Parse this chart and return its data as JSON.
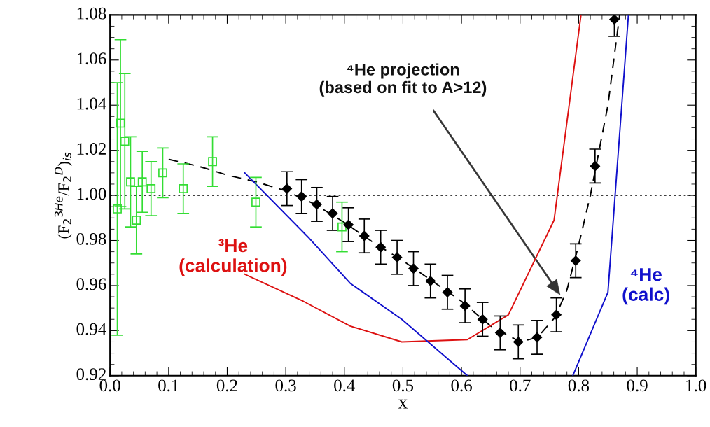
{
  "chart_data": {
    "type": "line",
    "xlabel": "x",
    "ylabel": "(F$_{2}$$^{3He}$/F$_{2}$$^{D}$)$_{is}$",
    "xlim": [
      0.0,
      1.0
    ],
    "ylim": [
      0.92,
      1.08
    ],
    "xticks": [
      {
        "value": 0.0,
        "label": "0.0"
      },
      0.1,
      0.2,
      0.3,
      0.4,
      0.5,
      0.6,
      0.7,
      0.8,
      0.9,
      {
        "value": 1.0,
        "label": "1.0"
      }
    ],
    "yticks": [
      0.92,
      0.94,
      0.96,
      0.98,
      {
        "value": 1.0,
        "label": "1.00"
      },
      1.02,
      1.04,
      1.06,
      1.08
    ],
    "grid": false,
    "legend": false,
    "ref_lines": [
      {
        "axis": "y",
        "value": 1.0,
        "color": "#000000",
        "line_style": "dotted"
      }
    ],
    "series": [
      {
        "color": "#000000",
        "line_style": "dashed",
        "marker": "none",
        "x": [
          0.1,
          0.15,
          0.2,
          0.25,
          0.3,
          0.35,
          0.4,
          0.45,
          0.5,
          0.55,
          0.6,
          0.65,
          0.7,
          0.73,
          0.76,
          0.78,
          0.8,
          0.82,
          0.85,
          0.87
        ],
        "values": [
          1.016,
          1.013,
          1.009,
          1.006,
          1.002,
          0.996,
          0.988,
          0.979,
          0.971,
          0.962,
          0.953,
          0.942,
          0.935,
          0.937,
          0.946,
          0.958,
          0.978,
          1.0,
          1.04,
          1.08
        ]
      },
      {
        "name": "³He\n(calculation)",
        "color": "#dd1111",
        "line_style": "solid",
        "marker": "none",
        "x": [
          0.23,
          0.33,
          0.41,
          0.498,
          0.61,
          0.68,
          0.758,
          0.804
        ],
        "values": [
          0.965,
          0.953,
          0.942,
          0.935,
          0.936,
          0.947,
          0.989,
          1.08
        ]
      },
      {
        "name": "⁴He\n(calc)",
        "color": "#1111cc",
        "line_style": "solid",
        "marker": "none",
        "x": [
          0.23,
          0.34,
          0.41,
          0.498,
          0.61,
          0.7,
          0.79,
          0.85,
          0.885
        ],
        "values": [
          1.01,
          0.981,
          0.961,
          0.945,
          0.92,
          null,
          0.92,
          0.957,
          1.08
        ]
      },
      {
        "type": "scatter",
        "color": "#33dd33",
        "marker": "square",
        "x": [
          0.0124,
          0.0178,
          0.0252,
          0.035,
          0.045,
          0.055,
          0.07,
          0.09,
          0.125,
          0.175,
          0.249,
          0.396
        ],
        "values": [
          0.994,
          1.032,
          1.024,
          1.006,
          0.989,
          1.006,
          1.003,
          1.01,
          1.003,
          1.015,
          0.997,
          0.986
        ],
        "errors": [
          0.056,
          0.037,
          0.03,
          0.02,
          0.015,
          0.0135,
          0.012,
          0.011,
          0.011,
          0.011,
          0.011,
          0.011
        ]
      },
      {
        "type": "scatter",
        "color": "#000000",
        "marker": "diamond",
        "x": [
          0.302,
          0.327,
          0.353,
          0.38,
          0.407,
          0.434,
          0.462,
          0.49,
          0.518,
          0.547,
          0.576,
          0.606,
          0.636,
          0.666,
          0.697,
          0.729,
          0.762,
          0.795,
          0.828,
          0.861
        ],
        "values": [
          1.003,
          0.9995,
          0.996,
          0.992,
          0.987,
          0.982,
          0.977,
          0.9725,
          0.9675,
          0.962,
          0.957,
          0.951,
          0.945,
          0.939,
          0.935,
          0.937,
          0.947,
          0.971,
          1.013,
          1.078
        ],
        "errors": [
          0.0075,
          0.0075,
          0.0075,
          0.0075,
          0.0075,
          0.0075,
          0.0075,
          0.0075,
          0.0075,
          0.0075,
          0.0075,
          0.0075,
          0.0075,
          0.0075,
          0.0075,
          0.0075,
          0.0075,
          0.0075,
          0.0075,
          0.0075
        ]
      }
    ],
    "annotations": [
      "⁴He projection\n(based on fit to A>12)"
    ]
  }
}
